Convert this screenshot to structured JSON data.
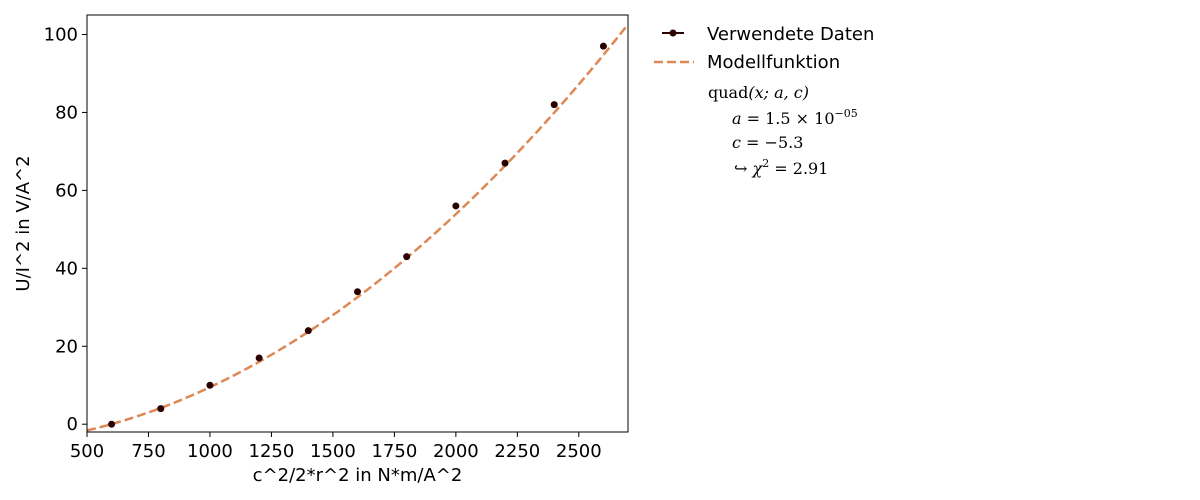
{
  "chart_data": {
    "type": "scatter",
    "xlabel": "c^2/2*r^2 in N*m/A^2",
    "ylabel": "U/I^2 in V/A^2",
    "xlim": [
      500,
      2700
    ],
    "ylim": [
      -2,
      105
    ],
    "xticks": [
      500,
      750,
      1000,
      1250,
      1500,
      1750,
      2000,
      2250,
      2500
    ],
    "yticks": [
      0,
      20,
      40,
      60,
      80,
      100
    ],
    "grid": false,
    "legend_position": "outside-right",
    "series": [
      {
        "name": "Verwendete Daten",
        "kind": "markers",
        "color": "#2b0000",
        "x": [
          600,
          800,
          1000,
          1200,
          1400,
          1600,
          1800,
          2000,
          2200,
          2400,
          2600
        ],
        "y": [
          0,
          4,
          10,
          17,
          24,
          34,
          43,
          56,
          67,
          82,
          97
        ]
      },
      {
        "name": "Modellfunktion",
        "kind": "dashed-line",
        "color": "#dd8855",
        "function": "a*x^2 + c",
        "a": 1.48e-05,
        "c": -5.3
      }
    ],
    "fit_info": {
      "function_label": "quad",
      "function_args": "(x; a, c)",
      "a_label": "a",
      "a_value": "1.5 × 10",
      "a_exponent": "−05",
      "c_label": "c",
      "c_value": "−5.3",
      "chi_label": "χ",
      "chi_value": "2.91"
    }
  }
}
